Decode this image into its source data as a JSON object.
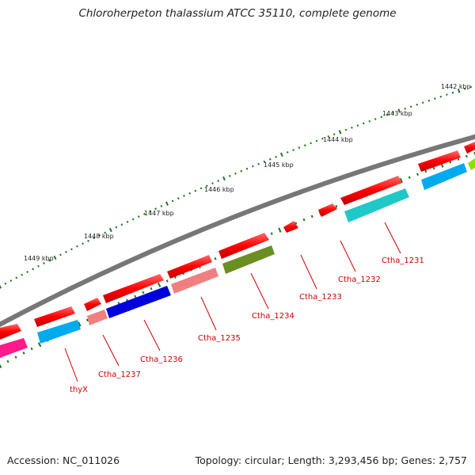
{
  "title": "Chloroherpeton thalassium ATCC 35110, complete genome",
  "footer": {
    "accession": "Accession: NC_011026",
    "topology": "Topology: circular; Length: 3,293,456 bp; Genes: 2,757"
  },
  "colors": {
    "backbone": "#7a7a7a",
    "tick": "#1a7a1a",
    "gene_label": "#cc0000"
  },
  "kbp_labels": [
    "1442 kbp",
    "1443 kbp",
    "1444 kbp",
    "1445 kbp",
    "1446 kbp",
    "1447 kbp",
    "1448 kbp",
    "1449 kbp"
  ],
  "genes": [
    {
      "name": "Ctha_1231",
      "strand_color": "#ff0000",
      "cds_color": "#20c8c8"
    },
    {
      "name": "Ctha_1232",
      "strand_color": "#ff0000",
      "cds_color": "#00aaee"
    },
    {
      "name": "Ctha_1233",
      "strand_color": "#ff0000",
      "cds_color": ""
    },
    {
      "name": "Ctha_1234",
      "strand_color": "#ff0000",
      "cds_color": "#6b8e23"
    },
    {
      "name": "Ctha_1235",
      "strand_color": "#ff0000",
      "cds_color": "#f08080"
    },
    {
      "name": "Ctha_1236",
      "strand_color": "#ff0000",
      "cds_color": "#0000dd"
    },
    {
      "name": "Ctha_1237",
      "strand_color": "#ff0000",
      "cds_color": "#f08080"
    },
    {
      "name": "thyX",
      "strand_color": "#ff0000",
      "cds_color": "#00aaee"
    }
  ]
}
